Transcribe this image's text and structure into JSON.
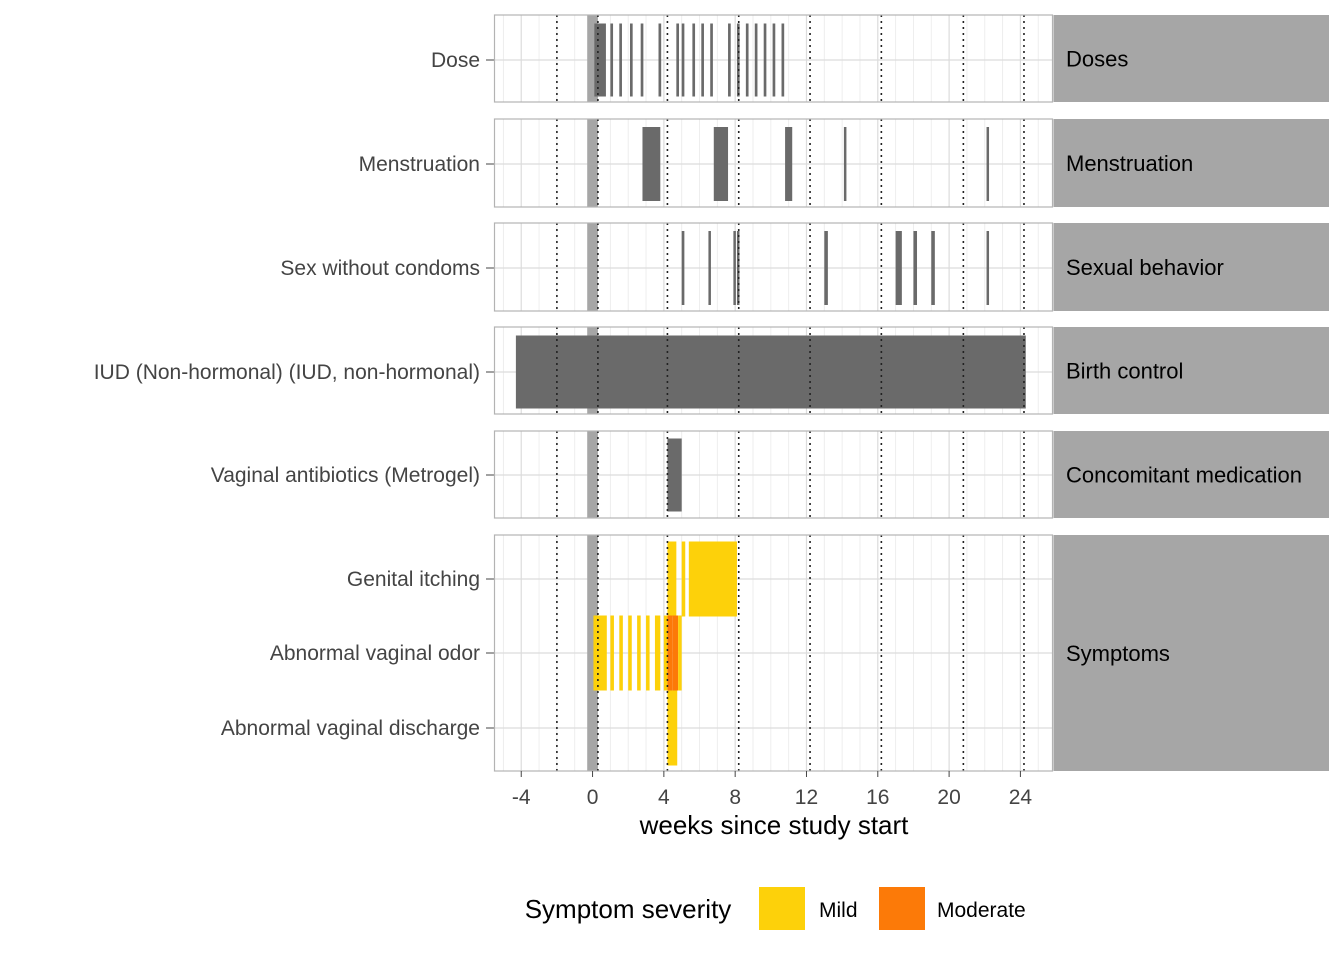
{
  "chart_data": {
    "type": "timeline",
    "xlabel": "weeks since study start",
    "x_ticks": [
      -4,
      0,
      4,
      8,
      12,
      16,
      20,
      24
    ],
    "xlim": [
      -5.5,
      25.8
    ],
    "grid": true,
    "shaded_interval": [
      -0.3,
      0.3
    ],
    "visit_lines": [
      -2,
      0.3,
      4.2,
      8.2,
      12.2,
      16.2,
      20.8,
      24.2
    ],
    "legend": {
      "title": "Symptom severity",
      "position": "bottom",
      "entries": [
        {
          "label": "Mild",
          "color": "#FDD10A"
        },
        {
          "label": "Moderate",
          "color": "#FC7A08"
        }
      ]
    },
    "bar_color": "#6a6a6a",
    "panels": [
      {
        "strip": "Doses",
        "rows": [
          {
            "label": "Dose",
            "bars": [
              [
                0.1,
                0.75
              ],
              [
                1.0,
                1.15
              ],
              [
                1.5,
                1.65
              ],
              [
                2.1,
                2.25
              ],
              [
                2.7,
                2.85
              ],
              [
                3.7,
                3.85
              ],
              [
                4.7,
                4.85
              ],
              [
                5.0,
                5.15
              ],
              [
                5.6,
                5.75
              ],
              [
                6.1,
                6.25
              ],
              [
                6.6,
                6.75
              ],
              [
                7.6,
                7.75
              ],
              [
                8.1,
                8.25
              ],
              [
                8.6,
                8.75
              ],
              [
                9.1,
                9.25
              ],
              [
                9.6,
                9.75
              ],
              [
                10.1,
                10.25
              ],
              [
                10.6,
                10.75
              ]
            ]
          }
        ]
      },
      {
        "strip": "Menstruation",
        "rows": [
          {
            "label": "Menstruation",
            "bars": [
              [
                2.8,
                3.8
              ],
              [
                6.8,
                7.6
              ],
              [
                10.8,
                11.2
              ],
              [
                14.1,
                14.2
              ],
              [
                22.1,
                22.2
              ]
            ]
          }
        ]
      },
      {
        "strip": "Sexual behavior",
        "rows": [
          {
            "label": "Sex without condoms",
            "bars": [
              [
                5.0,
                5.15
              ],
              [
                6.5,
                6.6
              ],
              [
                7.9,
                8.0
              ],
              [
                8.1,
                8.2
              ],
              [
                13.0,
                13.2
              ],
              [
                17.0,
                17.35
              ],
              [
                18.0,
                18.2
              ],
              [
                19.0,
                19.2
              ],
              [
                22.1,
                22.2
              ]
            ]
          }
        ]
      },
      {
        "strip": "Birth control",
        "rows": [
          {
            "label": "IUD (Non-hormonal) (IUD, non-hormonal)",
            "bars": [
              [
                -4.3,
                24.3
              ]
            ]
          }
        ]
      },
      {
        "strip": "Concomitant medication",
        "rows": [
          {
            "label": "Vaginal antibiotics (Metrogel)",
            "bars": [
              [
                4.2,
                5.0
              ]
            ]
          }
        ]
      },
      {
        "strip": "Symptoms",
        "rows": [
          {
            "label": "Genital itching",
            "bars": [
              {
                "x": [
                  4.2,
                  4.7
                ],
                "severity": "Mild"
              },
              {
                "x": [
                  5.0,
                  5.2
                ],
                "severity": "Mild"
              },
              {
                "x": [
                  5.4,
                  8.1
                ],
                "severity": "Mild"
              }
            ]
          },
          {
            "label": "Abnormal vaginal odor",
            "bars": [
              {
                "x": [
                  0.05,
                  0.8
                ],
                "severity": "Mild"
              },
              {
                "x": [
                  1.0,
                  1.2
                ],
                "severity": "Mild"
              },
              {
                "x": [
                  1.5,
                  1.7
                ],
                "severity": "Mild"
              },
              {
                "x": [
                  2.0,
                  2.2
                ],
                "severity": "Mild"
              },
              {
                "x": [
                  2.5,
                  2.7
                ],
                "severity": "Mild"
              },
              {
                "x": [
                  3.0,
                  3.2
                ],
                "severity": "Mild"
              },
              {
                "x": [
                  3.5,
                  3.8
                ],
                "severity": "Mild"
              },
              {
                "x": [
                  4.0,
                  4.2
                ],
                "severity": "Mild"
              },
              {
                "x": [
                  4.2,
                  4.5
                ],
                "severity": "Moderate"
              },
              {
                "x": [
                  4.5,
                  4.8
                ],
                "severity": "Moderate"
              },
              {
                "x": [
                  4.8,
                  5.0
                ],
                "severity": "Mild"
              }
            ]
          },
          {
            "label": "Abnormal vaginal discharge",
            "bars": [
              {
                "x": [
                  4.2,
                  4.75
                ],
                "severity": "Mild"
              }
            ]
          }
        ]
      }
    ]
  }
}
